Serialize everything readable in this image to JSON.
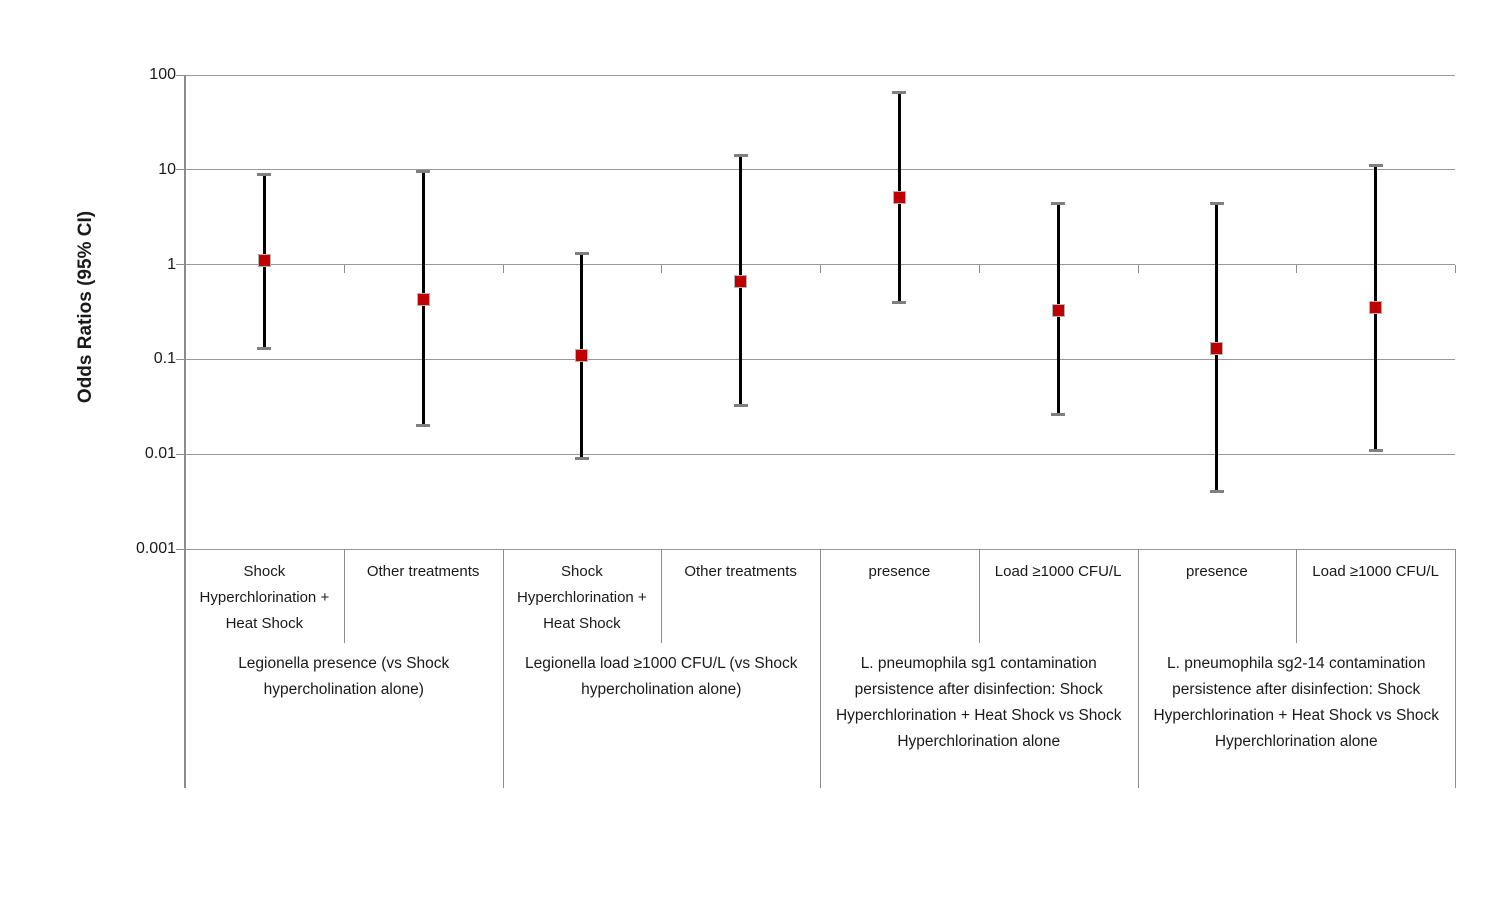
{
  "chart_data": {
    "type": "scatter",
    "subtype": "forest-plot-log-errorbars",
    "title": "",
    "ylabel": "Odds Ratios (95% CI)",
    "y_ticks": [
      "100",
      "10",
      "1",
      "0.1",
      "0.01",
      "0.001"
    ],
    "ylim": [
      0.001,
      100
    ],
    "log_scale": true,
    "grid": true,
    "legend": false,
    "groups": [
      {
        "label": "Legionella presence (vs Shock hypercholination alone)",
        "points": [
          {
            "category": "Shock Hyperchlorination + Heat Shock",
            "or": 1.1,
            "ci_low": 0.13,
            "ci_high": 9
          },
          {
            "category": "Other treatments",
            "or": 0.43,
            "ci_low": 0.02,
            "ci_high": 9.5
          }
        ]
      },
      {
        "label": "Legionella load ≥1000 CFU/L (vs Shock hypercholination alone)",
        "points": [
          {
            "category": "Shock Hyperchlorination + Heat Shock",
            "or": 0.11,
            "ci_low": 0.009,
            "ci_high": 1.3
          },
          {
            "category": "Other treatments",
            "or": 0.66,
            "ci_low": 0.033,
            "ci_high": 14
          }
        ]
      },
      {
        "label": "L. pneumophila sg1 contamination persistence after disinfection: Shock Hyperchlorination + Heat Shock vs Shock Hyperchlorination alone",
        "points": [
          {
            "category": "presence",
            "or": 5.1,
            "ci_low": 0.4,
            "ci_high": 65
          },
          {
            "category": "Load ≥1000 CFU/L",
            "or": 0.33,
            "ci_low": 0.026,
            "ci_high": 4.4
          }
        ]
      },
      {
        "label": "L. pneumophila sg2-14 contamination persistence after disinfection: Shock Hyperchlorination + Heat Shock vs Shock Hyperchlorination alone",
        "points": [
          {
            "category": "presence",
            "or": 0.13,
            "ci_low": 0.004,
            "ci_high": 4.4
          },
          {
            "category": "Load ≥1000 CFU/L",
            "or": 0.35,
            "ci_low": 0.011,
            "ci_high": 11
          }
        ]
      }
    ],
    "colors": {
      "marker": "#c00000",
      "marker_border": "#b3b3b3",
      "errorbar": "#000000",
      "cap": "#7f7f7f",
      "gridline": "#999999",
      "axis": "#8c8c8c",
      "separator": "#8c8c8c",
      "text": "#1a1a1a"
    }
  }
}
